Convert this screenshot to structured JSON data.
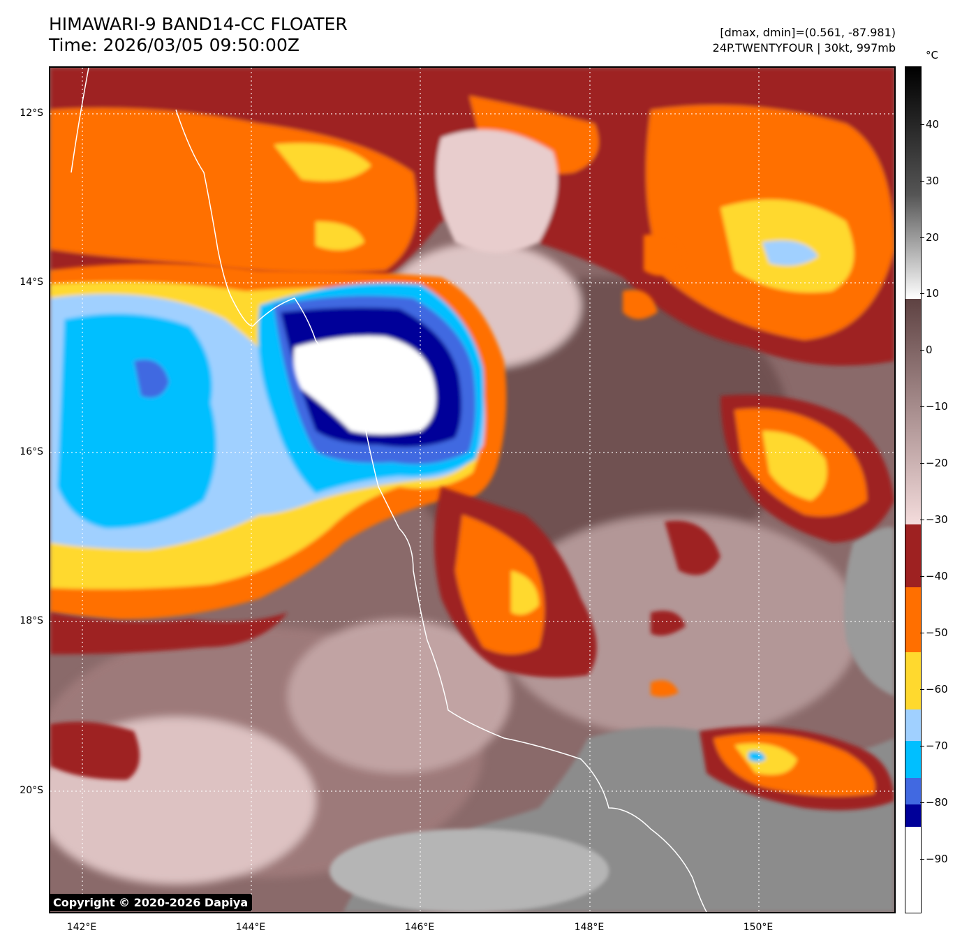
{
  "header": {
    "title_line1": "HIMAWARI-9 BAND14-CC FLOATER",
    "title_line2": "Time: 2026/03/05 09:50:00Z",
    "dminmax": "[dmax, dmin]=(0.561, -87.981)",
    "storm": "24P.TWENTYFOUR | 30kt, 997mb"
  },
  "map": {
    "lat_labels": [
      "12°S",
      "14°S",
      "16°S",
      "18°S",
      "20°S"
    ],
    "lon_labels": [
      "142°E",
      "144°E",
      "146°E",
      "148°E",
      "150°E"
    ],
    "copyright": "Copyright © 2020-2026 Dapiya"
  },
  "colorbar": {
    "unit": "°C",
    "ticks": [
      "40",
      "30",
      "20",
      "10",
      "0",
      "−10",
      "−20",
      "−30",
      "−40",
      "−50",
      "−60",
      "−70",
      "−80",
      "−90"
    ],
    "colors": {
      "white_cold": "#ffffff",
      "navy": "#000099",
      "royal_blue": "#4169e1",
      "deep_sky": "#00bfff",
      "light_blue": "#a0d0ff",
      "yellow": "#ffd92e",
      "orange": "#ff6f00",
      "dark_red": "#9e2121",
      "pink": "#f4d8d8",
      "mauve": "#7a5a5a",
      "gray_warm": "#909090"
    }
  }
}
